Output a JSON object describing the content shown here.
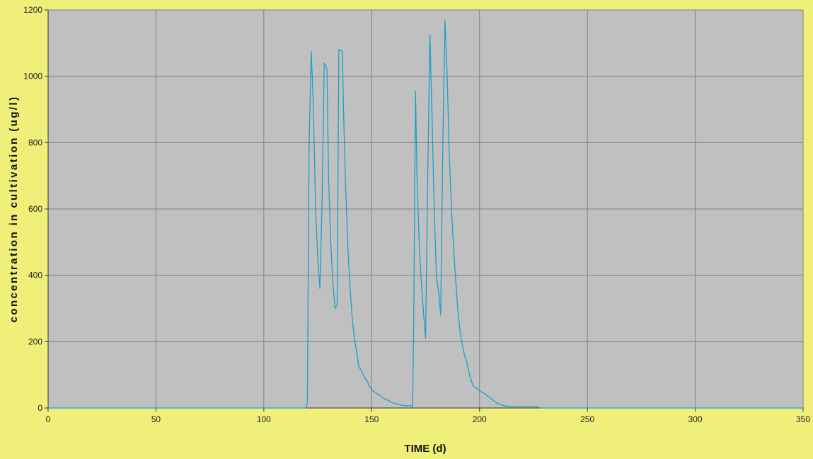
{
  "chart_data": {
    "type": "line",
    "title": "",
    "xlabel": "TIME (d)",
    "ylabel": "concentration in cultivation (ug/l)",
    "xlim": [
      0,
      350
    ],
    "ylim": [
      0,
      1200
    ],
    "x_ticks": [
      0,
      50,
      100,
      150,
      200,
      250,
      300,
      350
    ],
    "y_ticks": [
      0,
      200,
      400,
      600,
      800,
      1000,
      1200
    ],
    "grid": true,
    "legend": "none",
    "colors": {
      "background": "#efef7a",
      "plot_area": "#c0c0c0",
      "grid": "#808080",
      "series": "#1aa0c8"
    },
    "series": [
      {
        "x": [
          0,
          119.5,
          120.2,
          121,
          122,
          123,
          124,
          125,
          126,
          127,
          128,
          128.5,
          129.3,
          130,
          131,
          132,
          133,
          134,
          134.8,
          135.4,
          136.4,
          137,
          138,
          139,
          140,
          141,
          142,
          143,
          144,
          145,
          146,
          147,
          148,
          149,
          150,
          151,
          152,
          153,
          154,
          155,
          156,
          157,
          158,
          159,
          160,
          161,
          162,
          163,
          164,
          165,
          166,
          167,
          168,
          169,
          169.5,
          170.3,
          171,
          172,
          173,
          174,
          175,
          176,
          177,
          177.9,
          179,
          180,
          181,
          182,
          183,
          184,
          185,
          186,
          187,
          188,
          189,
          190,
          191,
          192,
          193,
          194,
          195,
          196,
          197,
          198,
          199,
          200,
          201,
          202,
          203,
          204,
          205,
          206,
          207,
          208,
          209,
          210,
          211,
          212,
          213,
          214,
          215,
          220,
          227,
          228,
          350
        ],
        "y": [
          0,
          0,
          20,
          800,
          1075,
          900,
          600,
          450,
          360,
          620,
          1040,
          1035,
          1020,
          700,
          500,
          380,
          300,
          310,
          1080,
          1078,
          1075,
          880,
          650,
          480,
          360,
          270,
          210,
          170,
          125,
          115,
          100,
          90,
          80,
          65,
          55,
          50,
          45,
          40,
          38,
          32,
          28,
          25,
          22,
          18,
          15,
          14,
          12,
          10,
          8,
          7,
          7,
          6,
          8,
          4,
          260,
          955,
          700,
          500,
          380,
          290,
          210,
          700,
          1125,
          900,
          600,
          400,
          350,
          280,
          800,
          1168,
          1000,
          760,
          600,
          480,
          380,
          290,
          230,
          190,
          160,
          140,
          110,
          85,
          68,
          62,
          58,
          52,
          48,
          45,
          40,
          35,
          30,
          25,
          20,
          15,
          12,
          10,
          8,
          6,
          5,
          4,
          4,
          4,
          4,
          0,
          0
        ]
      }
    ]
  }
}
